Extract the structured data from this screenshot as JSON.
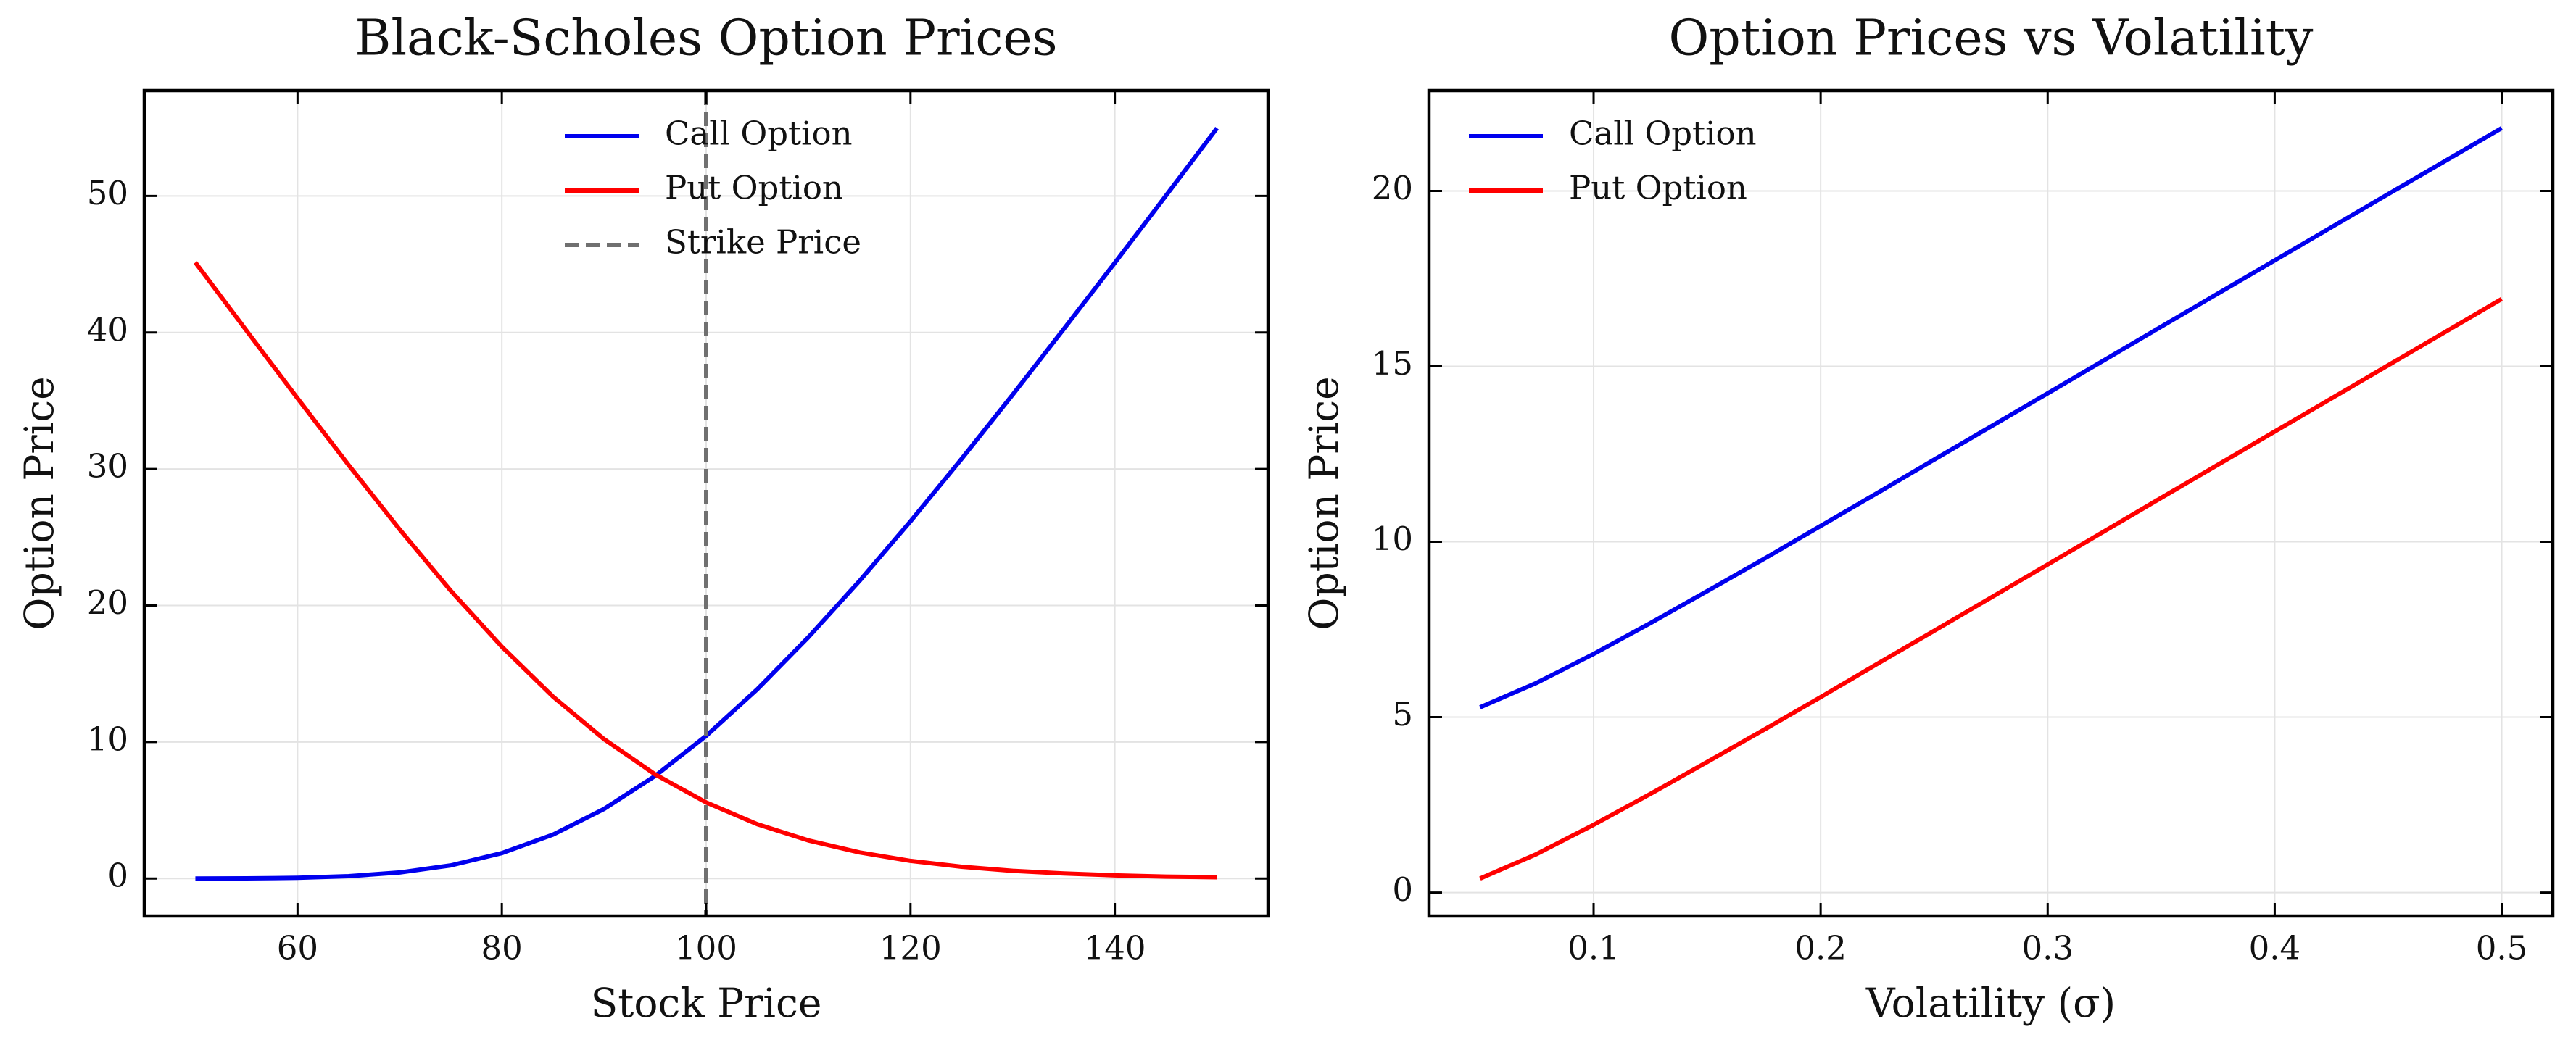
{
  "chart_data": [
    {
      "type": "line",
      "title": "Black-Scholes Option Prices",
      "xlabel": "Stock Price",
      "ylabel": "Option Price",
      "x": [
        50,
        55,
        60,
        65,
        70,
        75,
        80,
        85,
        90,
        95,
        100,
        105,
        110,
        115,
        120,
        125,
        130,
        135,
        140,
        145,
        150
      ],
      "series": [
        {
          "name": "Call Option",
          "color": "#0000ee",
          "values": [
            0.0,
            0.01,
            0.05,
            0.17,
            0.44,
            0.96,
            1.86,
            3.21,
            5.09,
            7.51,
            10.45,
            13.86,
            17.67,
            21.79,
            26.17,
            30.74,
            35.44,
            40.25,
            45.1,
            50.02,
            54.97
          ]
        },
        {
          "name": "Put Option",
          "color": "#ff0000",
          "values": [
            45.13,
            40.14,
            35.18,
            30.29,
            25.57,
            21.08,
            16.98,
            13.33,
            10.21,
            7.63,
            5.57,
            3.98,
            2.79,
            1.91,
            1.29,
            0.86,
            0.56,
            0.37,
            0.23,
            0.14,
            0.09
          ]
        }
      ],
      "vline": {
        "name": "Strike Price",
        "x": 100,
        "color": "#707070"
      },
      "xlim": [
        45,
        155
      ],
      "ylim": [
        -2.75,
        57.72
      ],
      "xticks": [
        60,
        80,
        100,
        120,
        140
      ],
      "yticks": [
        0,
        10,
        20,
        30,
        40,
        50
      ],
      "grid": true,
      "legend": "upper center"
    },
    {
      "type": "line",
      "title": "Option Prices vs Volatility",
      "xlabel": "Volatility (σ)",
      "ylabel": "Option Price",
      "x": [
        0.05,
        0.075,
        0.1,
        0.125,
        0.15,
        0.175,
        0.2,
        0.225,
        0.25,
        0.3,
        0.35,
        0.4,
        0.45,
        0.5
      ],
      "series": [
        {
          "name": "Call Option",
          "color": "#0000ee",
          "values": [
            5.28,
            5.98,
            6.8,
            7.68,
            8.59,
            9.51,
            10.45,
            11.39,
            12.34,
            14.23,
            16.13,
            18.02,
            19.91,
            21.79
          ]
        },
        {
          "name": "Put Option",
          "color": "#ff0000",
          "values": [
            0.4,
            1.1,
            1.93,
            2.81,
            3.72,
            4.64,
            5.57,
            6.52,
            7.46,
            9.35,
            11.25,
            13.14,
            15.03,
            16.92
          ]
        }
      ],
      "xlim": [
        0.0275,
        0.5225
      ],
      "ylim": [
        -0.67,
        22.86
      ],
      "xticks": [
        0.1,
        0.2,
        0.3,
        0.4,
        0.5
      ],
      "yticks": [
        0,
        5,
        10,
        15,
        20
      ],
      "grid": true,
      "legend": "upper left"
    }
  ]
}
